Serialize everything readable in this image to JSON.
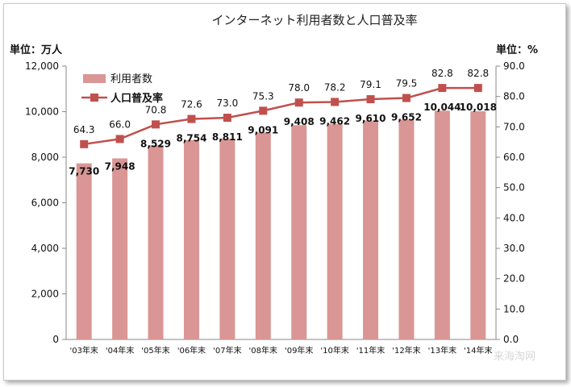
{
  "chart_data": {
    "type": "bar",
    "title": "インターネット利用者数と人口普及率",
    "left_unit_label": "単位：万人",
    "right_unit_label": "単位：%",
    "categories": [
      "'03年末",
      "'04年末",
      "'05年末",
      "'06年末",
      "'07年末",
      "'08年末",
      "'09年末",
      "'10年末",
      "'11年末",
      "'12年末",
      "'13年末",
      "'14年末"
    ],
    "series": [
      {
        "name": "利用者数",
        "type": "bar",
        "axis": "left",
        "color": "#d99694",
        "values": [
          7730,
          7948,
          8529,
          8754,
          8811,
          9091,
          9408,
          9462,
          9610,
          9652,
          10044,
          10018
        ],
        "labels": [
          "7,730",
          "7,948",
          "8,529",
          "8,754",
          "8,811",
          "9,091",
          "9,408",
          "9,462",
          "9,610",
          "9,652",
          "10,044",
          "10,018"
        ]
      },
      {
        "name": "人口普及率",
        "type": "line",
        "axis": "right",
        "color": "#c0504d",
        "values": [
          64.3,
          66.0,
          70.8,
          72.6,
          73.0,
          75.3,
          78.0,
          78.2,
          79.1,
          79.5,
          82.8,
          82.8
        ],
        "labels": [
          "64.3",
          "66.0",
          "70.8",
          "72.6",
          "73.0",
          "75.3",
          "78.0",
          "78.2",
          "79.1",
          "79.5",
          "82.8",
          "82.8"
        ]
      }
    ],
    "y_left": {
      "range": [
        0,
        12000
      ],
      "ticks": [
        "0",
        "2,000",
        "4,000",
        "6,000",
        "8,000",
        "10,000",
        "12,000"
      ]
    },
    "y_right": {
      "range": [
        0,
        90
      ],
      "ticks": [
        "0.0",
        "10.0",
        "20.0",
        "30.0",
        "40.0",
        "50.0",
        "60.0",
        "70.0",
        "80.0",
        "90.0"
      ]
    },
    "grid": false,
    "legend_position": "top-left"
  },
  "watermark": "来海淘网"
}
